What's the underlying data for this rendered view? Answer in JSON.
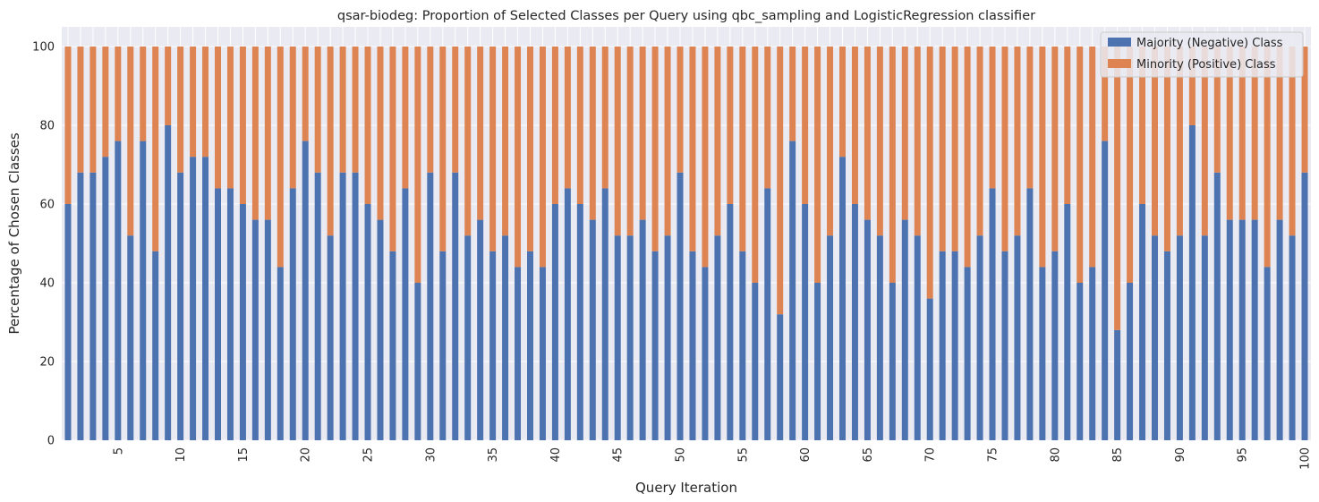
{
  "chart_data": {
    "type": "bar",
    "stacked": true,
    "title": "qsar-biodeg: Proportion of Selected Classes per Query using qbc_sampling and LogisticRegression classifier",
    "xlabel": "Query Iteration",
    "ylabel": "Percentage of Chosen Classes",
    "ylim": [
      0,
      105
    ],
    "yticks": [
      0,
      20,
      40,
      60,
      80,
      100
    ],
    "xtick_labels": [
      "5",
      "10",
      "15",
      "20",
      "25",
      "30",
      "35",
      "40",
      "45",
      "50",
      "55",
      "60",
      "65",
      "70",
      "75",
      "80",
      "85",
      "90",
      "95",
      "100"
    ],
    "grid": true,
    "legend_position": "upper right",
    "series": [
      {
        "name": "Majority (Negative) Class",
        "color": "#4c72b0",
        "values": [
          60,
          68,
          68,
          72,
          76,
          52,
          76,
          48,
          80,
          68,
          72,
          72,
          64,
          64,
          60,
          56,
          56,
          44,
          64,
          76,
          68,
          52,
          68,
          68,
          60,
          56,
          48,
          64,
          40,
          68,
          48,
          68,
          52,
          56,
          48,
          52,
          44,
          48,
          44,
          60,
          64,
          60,
          56,
          64,
          52,
          52,
          56,
          48,
          52,
          68,
          48,
          44,
          52,
          60,
          48,
          40,
          64,
          32,
          76,
          60,
          40,
          52,
          72,
          60,
          56,
          52,
          40,
          56,
          52,
          36,
          48,
          48,
          44,
          52,
          64,
          48,
          52,
          64,
          44,
          48,
          60,
          40,
          44,
          76,
          28,
          40,
          60,
          52,
          48,
          52,
          80,
          52,
          68,
          56,
          56,
          56,
          44,
          56,
          52,
          68
        ]
      },
      {
        "name": "Minority (Positive) Class",
        "color": "#dd8452",
        "values": [
          40,
          32,
          32,
          28,
          24,
          48,
          24,
          52,
          20,
          32,
          28,
          28,
          36,
          36,
          40,
          44,
          44,
          56,
          36,
          24,
          32,
          48,
          32,
          32,
          40,
          44,
          52,
          36,
          60,
          32,
          52,
          32,
          48,
          44,
          52,
          48,
          56,
          52,
          56,
          40,
          36,
          40,
          44,
          36,
          48,
          48,
          44,
          52,
          48,
          32,
          52,
          56,
          48,
          40,
          52,
          60,
          36,
          68,
          24,
          40,
          60,
          48,
          28,
          40,
          44,
          48,
          60,
          44,
          48,
          64,
          52,
          52,
          56,
          48,
          36,
          52,
          48,
          36,
          56,
          52,
          40,
          60,
          56,
          24,
          72,
          60,
          40,
          48,
          52,
          48,
          20,
          48,
          32,
          44,
          44,
          44,
          56,
          44,
          48,
          32
        ]
      }
    ]
  }
}
